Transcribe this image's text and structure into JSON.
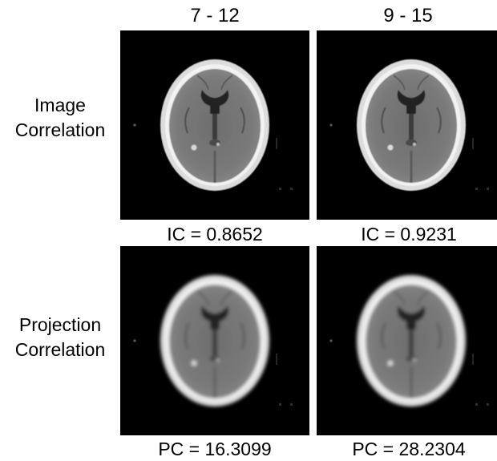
{
  "columns": [
    "7 - 12",
    "9 - 15"
  ],
  "rows": [
    {
      "label_line1": "Image",
      "label_line2": "Correlation",
      "metrics": [
        "IC = 0.8652",
        "IC = 0.9231"
      ]
    },
    {
      "label_line1": "Projection",
      "label_line2": "Correlation",
      "metrics": [
        "PC = 16.3099",
        "PC = 28.2304"
      ]
    }
  ],
  "colors": {
    "background": "#ffffff",
    "panel": "#000000",
    "skull": "#f2f2f2",
    "tissue": "#7a7a7a",
    "ventricle": "#202020"
  },
  "content_icon": "brain-ct-slice"
}
